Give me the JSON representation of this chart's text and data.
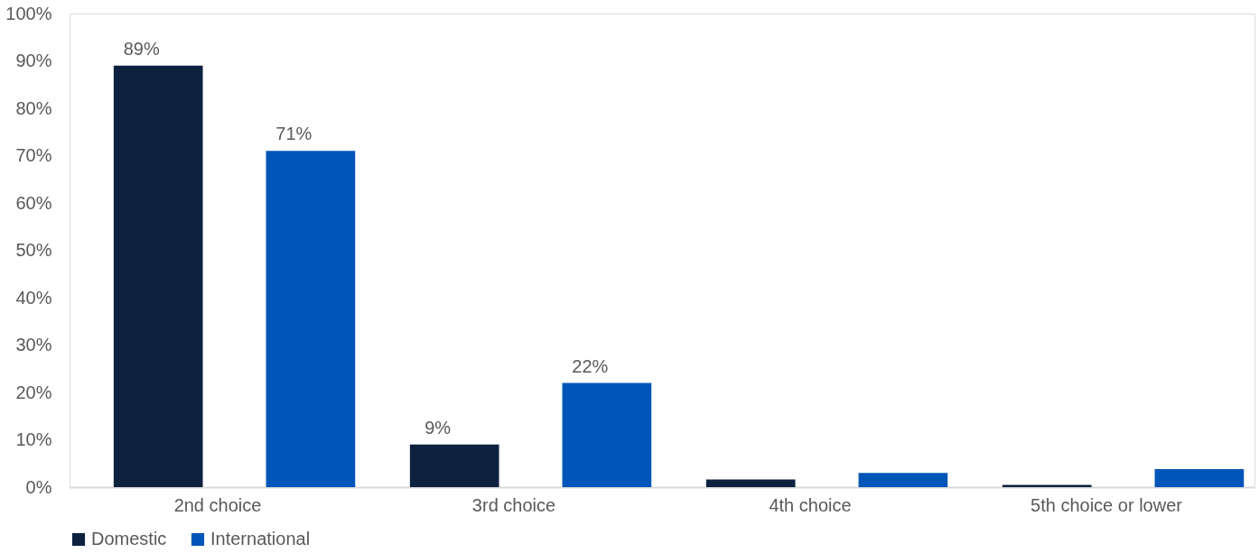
{
  "chart_data": {
    "type": "bar",
    "categories": [
      "2nd choice",
      "3rd choice",
      "4th choice",
      "5th choice or lower"
    ],
    "series": [
      {
        "name": "Domestic",
        "color": "#0e2240",
        "values": [
          89,
          9,
          1.6,
          0.5
        ],
        "value_labels": [
          "89%",
          "9%",
          null,
          null
        ]
      },
      {
        "name": "International",
        "color": "#0055b8",
        "values": [
          71,
          22,
          3,
          3.8
        ],
        "value_labels": [
          "71%",
          "22%",
          null,
          null
        ]
      }
    ],
    "ylim": [
      0,
      100
    ],
    "yticks": [
      {
        "value": 0,
        "label": "0%"
      },
      {
        "value": 10,
        "label": "10%"
      },
      {
        "value": 20,
        "label": "20%"
      },
      {
        "value": 30,
        "label": "30%"
      },
      {
        "value": 40,
        "label": "40%"
      },
      {
        "value": 50,
        "label": "50%"
      },
      {
        "value": 60,
        "label": "60%"
      },
      {
        "value": 70,
        "label": "70%"
      },
      {
        "value": 80,
        "label": "80%"
      },
      {
        "value": 90,
        "label": "90%"
      },
      {
        "value": 100,
        "label": "100%"
      }
    ],
    "grid": false,
    "legend": "bottom"
  }
}
